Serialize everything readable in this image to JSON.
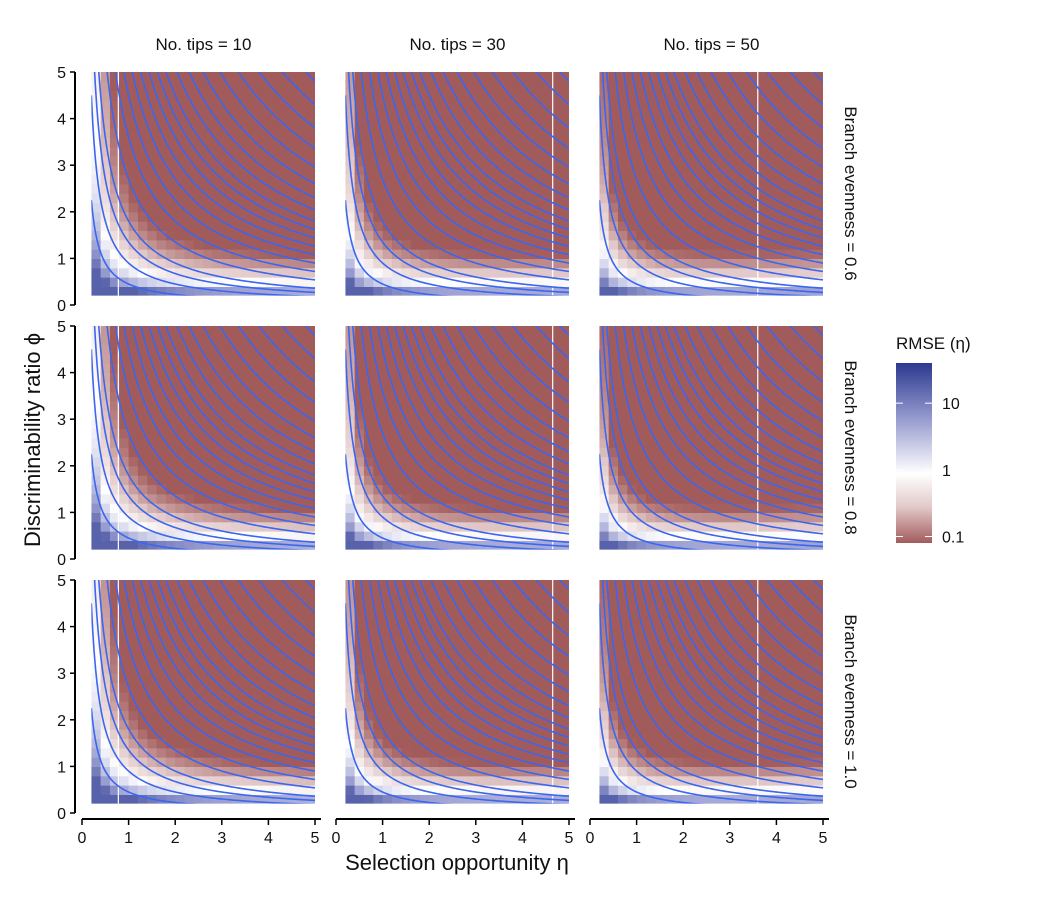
{
  "chart_data": {
    "type": "heatmap",
    "subtype": "faceted heatmap with contour lines",
    "xlabel": "Selection opportunity  η",
    "ylabel": "Discriminability ratio  ϕ",
    "xlim": [
      0,
      5
    ],
    "ylim": [
      0,
      5
    ],
    "x_ticks": [
      0,
      1,
      2,
      3,
      4,
      5
    ],
    "y_ticks": [
      0,
      1,
      2,
      3,
      4,
      5
    ],
    "data_extent": {
      "x": [
        0.2,
        5
      ],
      "y": [
        0.2,
        5
      ]
    },
    "columns": [
      {
        "label": "No. tips = 10",
        "tips": 10
      },
      {
        "label": "No. tips = 30",
        "tips": 30
      },
      {
        "label": "No. tips = 50",
        "tips": 50
      }
    ],
    "rows": [
      {
        "label": "Branch evenness = 0.6",
        "evenness": 0.6
      },
      {
        "label": "Branch evenness = 0.8",
        "evenness": 0.8
      },
      {
        "label": "Branch evenness = 1.0",
        "evenness": 1.0
      }
    ],
    "contour_levels_eta_times_phi": [
      0.45,
      0.9,
      1.35,
      1.8,
      2.7,
      3.6,
      4.5,
      5.4,
      6.3,
      7.2,
      8.1,
      9.0,
      10.2,
      11.5,
      13.0,
      14.8,
      16.8,
      19.0,
      21.5,
      24.0
    ],
    "reference_line_eta": [
      0.78,
      4.65,
      3.6
    ],
    "legend": {
      "title": "RMSE (η)",
      "scale": "log10",
      "range": [
        0.08,
        40
      ],
      "breaks": [
        {
          "value": 10,
          "label": "10"
        },
        {
          "value": 1,
          "label": "1"
        },
        {
          "value": 0.1,
          "label": "0.1"
        }
      ],
      "colors": {
        "high": "#2b3990",
        "mid": "#ffffff",
        "low": "#a25b5b"
      }
    },
    "contour_color": "#3b66f0",
    "reference_line_color": "#ffffff"
  }
}
